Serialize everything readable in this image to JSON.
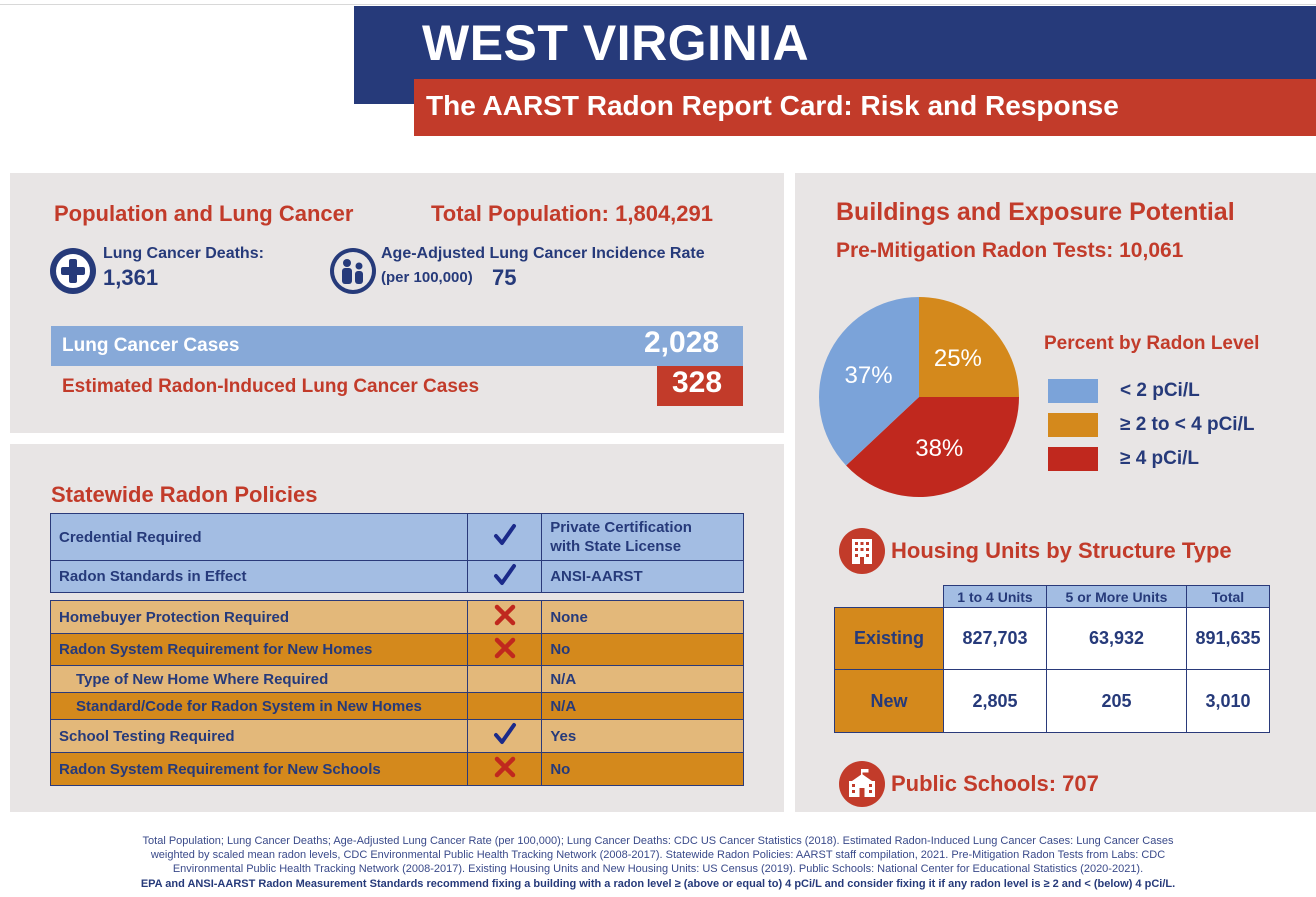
{
  "header": {
    "title": "WEST VIRGINIA",
    "subtitle": "The AARST Radon Report Card: Risk and Response"
  },
  "population": {
    "heading": "Population and Lung Cancer",
    "total_population": "Total Population: 1,804,291",
    "deaths_label": "Lung Cancer Deaths:",
    "deaths_value": "1,361",
    "incidence_label": "Age-Adjusted Lung Cancer Incidence Rate",
    "incidence_unit": "(per 100,000)",
    "incidence_value": "75",
    "cases_label": "Lung Cancer Cases",
    "cases_value": "2,028",
    "radon_cases_label": "Estimated Radon-Induced Lung Cancer Cases",
    "radon_cases_value": "328"
  },
  "policies": {
    "heading": "Statewide Radon Policies",
    "rows": [
      {
        "label": "Credential Required",
        "mark": "check",
        "value1": "Private Certification",
        "value2": "with State License"
      },
      {
        "label": "Radon Standards in Effect",
        "mark": "check",
        "value1": "ANSI-AARST"
      },
      {
        "label": "Homebuyer Protection Required",
        "mark": "cross",
        "value1": "None"
      },
      {
        "label": "Radon System Requirement for New Homes",
        "mark": "cross",
        "value1": "No"
      },
      {
        "label": "Type of New Home Where Required",
        "mark": "",
        "value1": "N/A"
      },
      {
        "label": "Standard/Code for Radon System in New Homes",
        "mark": "",
        "value1": "N/A"
      },
      {
        "label": "School Testing Required",
        "mark": "check",
        "value1": "Yes"
      },
      {
        "label": "Radon System Requirement for New Schools",
        "mark": "cross",
        "value1": "No"
      }
    ]
  },
  "buildings": {
    "heading": "Buildings and Exposure Potential",
    "tests": "Pre-Mitigation Radon Tests: 10,061",
    "legend_title": "Percent by Radon Level",
    "housing_heading": "Housing Units by Structure Type",
    "schools": "Public Schools: 707"
  },
  "chart_data": {
    "type": "pie",
    "title": "Percent by Radon Level",
    "labels": [
      "< 2 pCi/L",
      "≥ 2 to < 4 pCi/L",
      "≥ 4 pCi/L"
    ],
    "values": [
      37,
      25,
      38
    ],
    "value_labels": [
      "37%",
      "25%",
      "38%"
    ],
    "colors": [
      "#7ba3d9",
      "#d4891c",
      "#c0281e"
    ]
  },
  "housing": {
    "headers": [
      "1 to 4 Units",
      "5 or More Units",
      "Total"
    ],
    "rows": [
      {
        "label": "Existing",
        "values": [
          "827,703",
          "63,932",
          "891,635"
        ]
      },
      {
        "label": "New",
        "values": [
          "2,805",
          "205",
          "3,010"
        ]
      }
    ]
  },
  "footer": {
    "line1": "Total Population; Lung Cancer Deaths; Age-Adjusted Lung Cancer Rate (per 100,000); Lung Cancer Deaths: CDC US Cancer Statistics (2018). Estimated Radon-Induced Lung Cancer Cases: Lung Cancer Cases",
    "line2": "weighted by scaled mean radon levels, CDC Environmental Public Health Tracking Network (2008-2017). Statewide Radon Policies: AARST staff compilation, 2021. Pre-Mitigation Radon Tests from Labs: CDC",
    "line3": "Environmental Public Health Tracking Network (2008-2017). Existing Housing Units and New Housing Units: US Census (2019). Public Schools: National Center for Educational Statistics (2020-2021).",
    "line4": "EPA and ANSI-AARST Radon Measurement Standards recommend fixing a building with a radon level ≥ (above or equal to) 4 pCi/L and consider fixing it if any radon level is ≥ 2 and < (below) 4 pCi/L."
  }
}
